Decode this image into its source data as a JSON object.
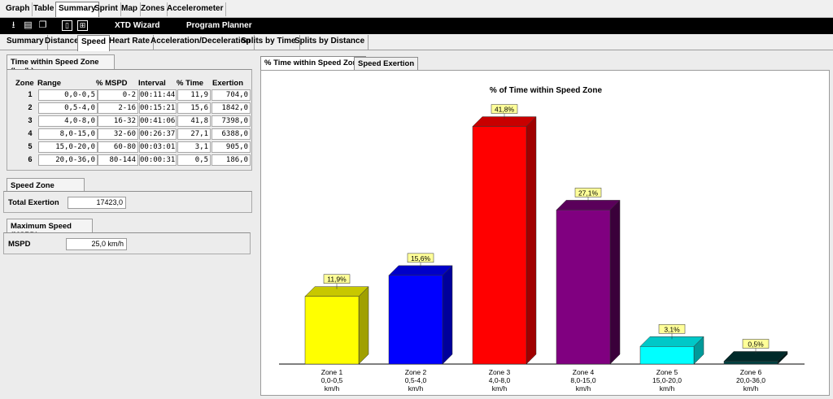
{
  "top_tabs": [
    "Graph",
    "Table",
    "Summary",
    "Sprint",
    "Map",
    "Zones",
    "Accelerometer"
  ],
  "top_tab_active": "Summary",
  "toolbar": {
    "wizard_label": "XTD Wizard",
    "planner_label": "Program Planner"
  },
  "sub_tabs": [
    "Summary",
    "Distance",
    "Speed",
    "Heart Rate",
    "Acceleration/Deceleration",
    "Splits by Time",
    "Splits by Distance"
  ],
  "sub_tab_active": "Speed",
  "speed_zone_table": {
    "title": "Time within Speed Zone (km/h)",
    "headers": [
      "Zone",
      "Range",
      "% MSPD",
      "Interval",
      "% Time",
      "Exertion"
    ],
    "rows": [
      [
        "1",
        "0,0-0,5",
        "0-2",
        "00:11:44",
        "11,9",
        "704,0"
      ],
      [
        "2",
        "0,5-4,0",
        "2-16",
        "00:15:21",
        "15,6",
        "1842,0"
      ],
      [
        "3",
        "4,0-8,0",
        "16-32",
        "00:41:06",
        "41,8",
        "7398,0"
      ],
      [
        "4",
        "8,0-15,0",
        "32-60",
        "00:26:37",
        "27,1",
        "6388,0"
      ],
      [
        "5",
        "15,0-20,0",
        "60-80",
        "00:03:01",
        "3,1",
        "905,0"
      ],
      [
        "6",
        "20,0-36,0",
        "80-144",
        "00:00:31",
        "0,5",
        "186,0"
      ]
    ]
  },
  "exertion": {
    "title": "Speed Zone Exertion",
    "label": "Total Exertion",
    "value": "17423,0"
  },
  "max_speed": {
    "title": "Maximum Speed (MSPD)",
    "label": "MSPD",
    "value": "25,0 km/h"
  },
  "chart_tabs": [
    "% Time within Speed Zone",
    "Speed Exertion"
  ],
  "chart_tab_active": "% Time within Speed Zone",
  "chart_data": {
    "type": "bar",
    "title": "% of Time within Speed Zone",
    "categories": [
      "Zone 1",
      "Zone 2",
      "Zone 3",
      "Zone 4",
      "Zone 5",
      "Zone 6"
    ],
    "category_ranges": [
      "0,0-0,5",
      "0,5-4,0",
      "4,0-8,0",
      "8,0-15,0",
      "15,0-20,0",
      "20,0-36,0"
    ],
    "category_unit": "km/h",
    "values": [
      11.9,
      15.6,
      41.8,
      27.1,
      3.1,
      0.5
    ],
    "value_labels": [
      "11,9%",
      "15,6%",
      "41,8%",
      "27,1%",
      "3,1%",
      "0,5%"
    ],
    "colors": [
      "#ffff00",
      "#0000ff",
      "#ff0000",
      "#800080",
      "#00ffff",
      "#004040"
    ],
    "side_colors": [
      "#a0a000",
      "#00009a",
      "#a00000",
      "#3a003a",
      "#009a9a",
      "#001a1a"
    ],
    "top_colors": [
      "#c8c800",
      "#0000c8",
      "#c80000",
      "#5a005a",
      "#00c8c8",
      "#002a2a"
    ],
    "ylim": [
      0,
      45
    ],
    "grid": false,
    "legend": "none"
  }
}
